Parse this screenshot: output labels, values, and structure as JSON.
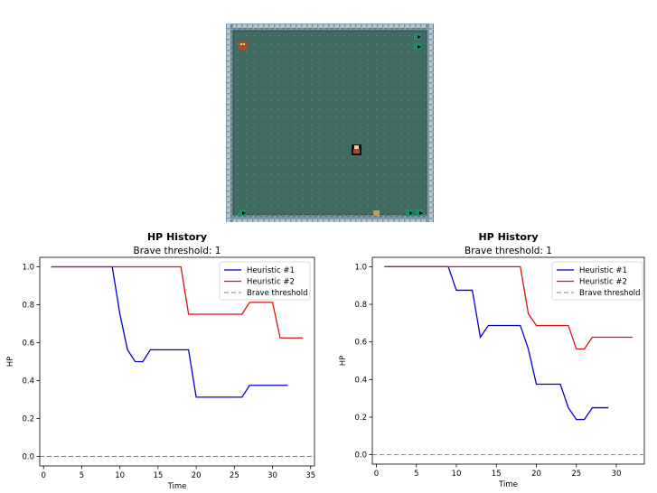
{
  "game": {
    "floor_color": "#3f6b63",
    "wall_color": "#8fa6b3",
    "icons": [
      "hero-sprite",
      "monster-sprite",
      "door-icon",
      "key-icon",
      "coin-icon"
    ]
  },
  "chart_data": [
    {
      "type": "line",
      "title": "HP History",
      "subtitle": "Brave threshold: 1",
      "xlabel": "Time",
      "ylabel": "HP",
      "xlim": [
        -0.5,
        35.5
      ],
      "ylim": [
        -0.05,
        1.05
      ],
      "xticks": [
        0,
        5,
        10,
        15,
        20,
        25,
        30,
        35
      ],
      "yticks": [
        0.0,
        0.2,
        0.4,
        0.6,
        0.8,
        1.0
      ],
      "legend_position": "top-right",
      "series": [
        {
          "name": "Heuristic #1",
          "color": "#0000cc",
          "dash": "solid",
          "x": [
            1,
            9,
            10,
            11,
            12,
            13,
            14,
            19,
            20,
            26,
            27,
            32
          ],
          "y": [
            1.0,
            1.0,
            0.75,
            0.5625,
            0.5,
            0.5,
            0.5625,
            0.5625,
            0.3125,
            0.3125,
            0.375,
            0.375
          ]
        },
        {
          "name": "Heuristic #2",
          "color": "#dd1111",
          "dash": "solid",
          "x": [
            1,
            18,
            19,
            26,
            27,
            30,
            31,
            34
          ],
          "y": [
            1.0,
            1.0,
            0.75,
            0.75,
            0.8125,
            0.8125,
            0.625,
            0.625
          ]
        },
        {
          "name": "Brave threshold",
          "color": "#808080",
          "dash": "dashed",
          "x": [
            -0.5,
            35.5
          ],
          "y": [
            0.0,
            0.0
          ]
        }
      ]
    },
    {
      "type": "line",
      "title": "HP History",
      "subtitle": "Brave threshold: 1",
      "xlabel": "Time",
      "ylabel": "HP",
      "xlim": [
        -0.5,
        33.5
      ],
      "ylim": [
        -0.05,
        1.05
      ],
      "xticks": [
        0,
        5,
        10,
        15,
        20,
        25,
        30
      ],
      "yticks": [
        0.0,
        0.2,
        0.4,
        0.6,
        0.8,
        1.0
      ],
      "legend_position": "top-right",
      "series": [
        {
          "name": "Heuristic #1",
          "color": "#0000cc",
          "dash": "solid",
          "x": [
            1,
            9,
            10,
            12,
            13,
            14,
            18,
            19,
            20,
            23,
            24,
            25,
            26,
            27,
            29
          ],
          "y": [
            1.0,
            1.0,
            0.875,
            0.875,
            0.625,
            0.6875,
            0.6875,
            0.5625,
            0.375,
            0.375,
            0.25,
            0.1875,
            0.1875,
            0.25,
            0.25
          ]
        },
        {
          "name": "Heuristic #2",
          "color": "#dd1111",
          "dash": "solid",
          "x": [
            1,
            18,
            19,
            20,
            24,
            25,
            26,
            27,
            32
          ],
          "y": [
            1.0,
            1.0,
            0.75,
            0.6875,
            0.6875,
            0.5625,
            0.5625,
            0.625,
            0.625
          ]
        },
        {
          "name": "Brave threshold",
          "color": "#808080",
          "dash": "dashed",
          "x": [
            -0.5,
            33.5
          ],
          "y": [
            0.0,
            0.0
          ]
        }
      ]
    }
  ]
}
